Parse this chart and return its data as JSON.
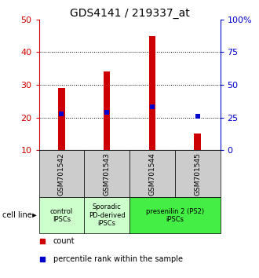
{
  "title": "GDS4141 / 219337_at",
  "samples": [
    "GSM701542",
    "GSM701543",
    "GSM701544",
    "GSM701545"
  ],
  "bar_values": [
    29,
    34,
    45,
    15
  ],
  "bar_bottom": 10,
  "percentile_values": [
    28,
    29,
    33,
    26
  ],
  "bar_color": "#cc0000",
  "percentile_color": "#0000cc",
  "ylim_left": [
    10,
    50
  ],
  "ylim_right": [
    0,
    100
  ],
  "yticks_left": [
    10,
    20,
    30,
    40,
    50
  ],
  "yticks_right": [
    0,
    25,
    50,
    75,
    100
  ],
  "ytick_labels_right": [
    "0",
    "25",
    "50",
    "75",
    "100%"
  ],
  "ytick_color_left": "#cc0000",
  "ytick_color_right": "#0000cc",
  "group_configs": [
    {
      "span": [
        0,
        0
      ],
      "label": "control\nIPSCs",
      "color": "#ccffcc"
    },
    {
      "span": [
        1,
        1
      ],
      "label": "Sporadic\nPD-derived\niPSCs",
      "color": "#ccffcc"
    },
    {
      "span": [
        2,
        3
      ],
      "label": "presenilin 2 (PS2)\niPSCs",
      "color": "#44ee44"
    }
  ],
  "cell_line_label": "cell line",
  "legend_count_label": "count",
  "legend_percentile_label": "percentile rank within the sample",
  "sample_box_color": "#cccccc",
  "bar_width": 0.15
}
